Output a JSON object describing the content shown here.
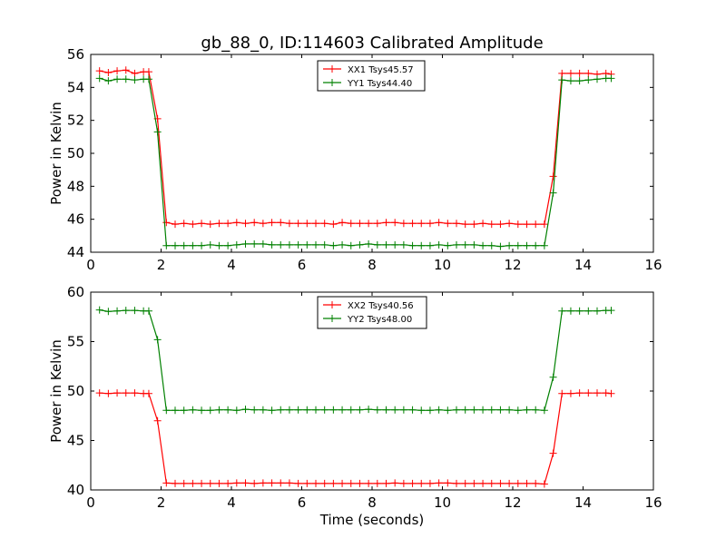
{
  "figure": {
    "title": "gb_88_0, ID:114603 Calibrated Amplitude"
  },
  "chart_data": [
    {
      "type": "line",
      "title": "gb_88_0, ID:114603 Calibrated Amplitude",
      "xlabel": "",
      "ylabel": "Power in Kelvin",
      "xlim": [
        0,
        16
      ],
      "ylim": [
        44,
        56
      ],
      "xticks": [
        "0",
        "2",
        "4",
        "6",
        "8",
        "10",
        "12",
        "14",
        "16"
      ],
      "yticks": [
        "44",
        "46",
        "48",
        "50",
        "52",
        "54",
        "56"
      ],
      "legend_position": "top-center",
      "grid": false,
      "x": [
        0.25,
        0.5,
        0.75,
        1.0,
        1.25,
        1.5,
        1.65,
        1.9,
        2.15,
        2.4,
        2.65,
        2.9,
        3.15,
        3.4,
        3.65,
        3.9,
        4.15,
        4.4,
        4.65,
        4.9,
        5.15,
        5.4,
        5.65,
        5.9,
        6.15,
        6.4,
        6.65,
        6.9,
        7.15,
        7.4,
        7.65,
        7.9,
        8.15,
        8.4,
        8.65,
        8.9,
        9.15,
        9.4,
        9.65,
        9.9,
        10.15,
        10.4,
        10.65,
        10.9,
        11.15,
        11.4,
        11.65,
        11.9,
        12.15,
        12.4,
        12.65,
        12.9,
        13.15,
        13.4,
        13.65,
        13.9,
        14.15,
        14.4,
        14.65,
        14.8
      ],
      "series": [
        {
          "name": "XX1 Tsys45.57",
          "color": "#ff0000",
          "values": [
            55.0,
            54.9,
            55.0,
            55.05,
            54.85,
            54.95,
            54.95,
            52.1,
            45.8,
            45.7,
            45.75,
            45.7,
            45.75,
            45.7,
            45.75,
            45.75,
            45.8,
            45.75,
            45.8,
            45.75,
            45.8,
            45.8,
            45.75,
            45.75,
            45.75,
            45.75,
            45.75,
            45.7,
            45.8,
            45.75,
            45.75,
            45.75,
            45.75,
            45.8,
            45.8,
            45.75,
            45.75,
            45.75,
            45.75,
            45.8,
            45.75,
            45.75,
            45.7,
            45.7,
            45.75,
            45.7,
            45.7,
            45.75,
            45.7,
            45.7,
            45.7,
            45.7,
            48.6,
            54.85,
            54.85,
            54.85,
            54.85,
            54.8,
            54.85,
            54.8
          ]
        },
        {
          "name": "YY1 Tsys44.40",
          "color": "#008000",
          "values": [
            54.55,
            54.4,
            54.5,
            54.5,
            54.45,
            54.5,
            54.5,
            51.3,
            44.4,
            44.4,
            44.4,
            44.4,
            44.4,
            44.45,
            44.4,
            44.4,
            44.45,
            44.5,
            44.5,
            44.5,
            44.45,
            44.45,
            44.45,
            44.45,
            44.45,
            44.45,
            44.45,
            44.4,
            44.45,
            44.4,
            44.45,
            44.5,
            44.45,
            44.45,
            44.45,
            44.45,
            44.4,
            44.4,
            44.4,
            44.45,
            44.4,
            44.45,
            44.45,
            44.45,
            44.4,
            44.4,
            44.35,
            44.4,
            44.4,
            44.4,
            44.4,
            44.4,
            47.6,
            54.45,
            54.4,
            54.4,
            54.45,
            54.5,
            54.55,
            54.55
          ]
        }
      ]
    },
    {
      "type": "line",
      "title": "",
      "xlabel": "Time (seconds)",
      "ylabel": "Power in Kelvin",
      "xlim": [
        0,
        16
      ],
      "ylim": [
        40,
        60
      ],
      "xticks": [
        "0",
        "2",
        "4",
        "6",
        "8",
        "10",
        "12",
        "14",
        "16"
      ],
      "yticks": [
        "40",
        "45",
        "50",
        "55",
        "60"
      ],
      "legend_position": "top-center",
      "grid": false,
      "x": [
        0.25,
        0.5,
        0.75,
        1.0,
        1.25,
        1.5,
        1.65,
        1.9,
        2.15,
        2.4,
        2.65,
        2.9,
        3.15,
        3.4,
        3.65,
        3.9,
        4.15,
        4.4,
        4.65,
        4.9,
        5.15,
        5.4,
        5.65,
        5.9,
        6.15,
        6.4,
        6.65,
        6.9,
        7.15,
        7.4,
        7.65,
        7.9,
        8.15,
        8.4,
        8.65,
        8.9,
        9.15,
        9.4,
        9.65,
        9.9,
        10.15,
        10.4,
        10.65,
        10.9,
        11.15,
        11.4,
        11.65,
        11.9,
        12.15,
        12.4,
        12.65,
        12.9,
        13.15,
        13.4,
        13.65,
        13.9,
        14.15,
        14.4,
        14.65,
        14.8
      ],
      "series": [
        {
          "name": "XX2 Tsys40.56",
          "color": "#ff0000",
          "values": [
            49.8,
            49.75,
            49.8,
            49.8,
            49.8,
            49.75,
            49.75,
            47.0,
            40.7,
            40.65,
            40.65,
            40.65,
            40.65,
            40.65,
            40.65,
            40.65,
            40.7,
            40.7,
            40.65,
            40.7,
            40.7,
            40.7,
            40.7,
            40.65,
            40.65,
            40.65,
            40.65,
            40.65,
            40.65,
            40.65,
            40.65,
            40.65,
            40.65,
            40.65,
            40.7,
            40.65,
            40.65,
            40.65,
            40.65,
            40.7,
            40.7,
            40.65,
            40.65,
            40.65,
            40.65,
            40.65,
            40.65,
            40.65,
            40.65,
            40.65,
            40.65,
            40.6,
            43.7,
            49.75,
            49.75,
            49.8,
            49.8,
            49.8,
            49.8,
            49.75
          ]
        },
        {
          "name": "YY2 Tsys48.00",
          "color": "#008000",
          "values": [
            58.2,
            58.05,
            58.1,
            58.15,
            58.15,
            58.1,
            58.1,
            55.2,
            48.05,
            48.05,
            48.05,
            48.1,
            48.05,
            48.05,
            48.1,
            48.1,
            48.05,
            48.15,
            48.1,
            48.1,
            48.05,
            48.1,
            48.1,
            48.1,
            48.1,
            48.1,
            48.1,
            48.1,
            48.1,
            48.1,
            48.1,
            48.15,
            48.1,
            48.1,
            48.1,
            48.1,
            48.1,
            48.05,
            48.05,
            48.1,
            48.05,
            48.1,
            48.1,
            48.1,
            48.1,
            48.1,
            48.1,
            48.1,
            48.05,
            48.1,
            48.1,
            48.05,
            51.4,
            58.1,
            58.1,
            58.1,
            58.1,
            58.1,
            58.15,
            58.15
          ]
        }
      ]
    }
  ]
}
